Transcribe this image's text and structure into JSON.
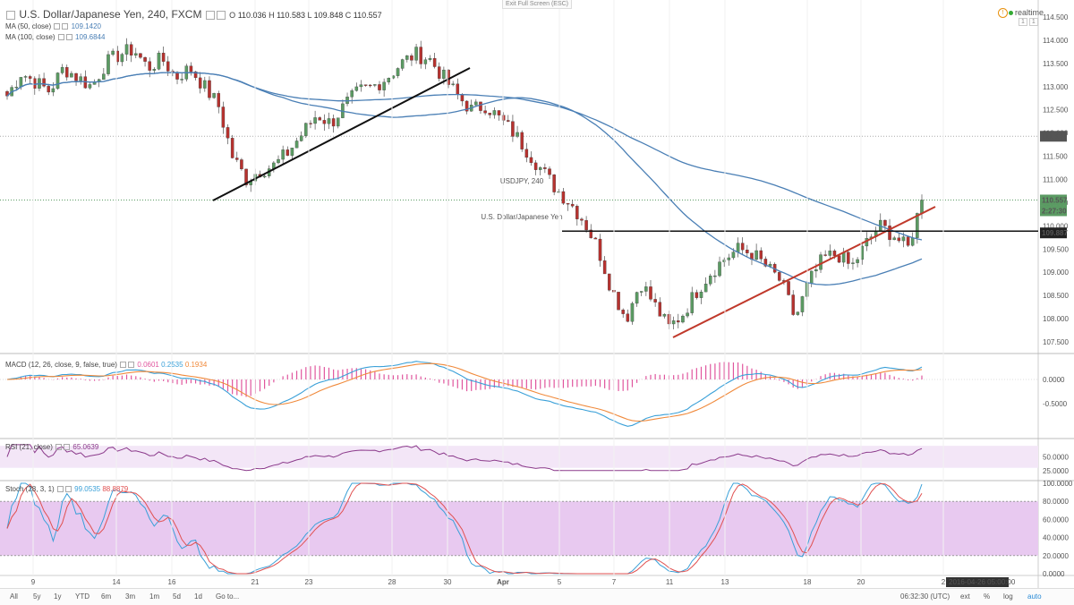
{
  "header": {
    "symbol_title": "U.S. Dollar/Japanese Yen, 240, FXCM",
    "ohlc": {
      "o_label": "O",
      "o": "110.036",
      "h_label": "H",
      "h": "110.583",
      "l_label": "L",
      "l": "109.848",
      "c_label": "C",
      "c": "110.557"
    },
    "ma50_label": "MA (50, close)",
    "ma50_value": "109.1420",
    "ma100_label": "MA (100, close)",
    "ma100_value": "109.6844",
    "exit_fullscreen": "Exit Full Screen (ESC)",
    "realtime": "realtime",
    "realtime_icon": "!",
    "badge1": "1",
    "badge2": "1"
  },
  "watermark": {
    "symbol": "USDJPY, 240",
    "name": "U.S. Dollar/Japanese Yen"
  },
  "price_axis": {
    "ticks": [
      "114.500",
      "114.000",
      "113.500",
      "113.000",
      "112.500",
      "112.000",
      "111.500",
      "111.000",
      "110.500",
      "110.000",
      "109.500",
      "109.000",
      "108.500",
      "108.000",
      "107.500"
    ],
    "tag_111930": "111.930",
    "tag_last": "110.557",
    "tag_countdown": "2:27:30",
    "tag_level": "109.887"
  },
  "macd": {
    "label": "MACD (12, 26, close, 9, false, true)",
    "v1": "0.0601",
    "v2": "0.2535",
    "v3": "0.1934",
    "ticks": [
      "0.0000",
      "-0.5000"
    ]
  },
  "rsi": {
    "label": "RSI (21, close)",
    "value": "65.0639",
    "ticks": [
      "50.0000",
      "25.0000"
    ]
  },
  "stoch": {
    "label": "Stoch (28, 3, 1)",
    "v1": "99.0535",
    "v2": "88.8879",
    "ticks": [
      "100.0000",
      "80.0000",
      "60.0000",
      "40.0000",
      "20.0000",
      "0.0000"
    ]
  },
  "time_axis": {
    "ticks": [
      "9",
      "14",
      "16",
      "21",
      "23",
      "28",
      "30",
      "Apr",
      "5",
      "7",
      "11",
      "13",
      "18",
      "20",
      "2"
    ],
    "cursor_label": "2016-04-26 05:00:00"
  },
  "bottom_bar": {
    "ranges": [
      "All",
      "5y",
      "1y",
      "YTD",
      "6m",
      "3m",
      "1m",
      "5d",
      "1d",
      "Go to..."
    ],
    "clock": "06:32:30 (UTC)",
    "right": [
      "ext",
      "%",
      "log",
      "auto"
    ]
  },
  "colors": {
    "up": "#5b9b63",
    "down": "#b7322f",
    "ma": "#4a7fb5",
    "trend_red": "#c0392b",
    "macd_hist": "#e0569e",
    "macd_line": "#3aa0d8",
    "signal_line": "#f08a3c",
    "rsi_line": "#8b3a8b",
    "rsi_band": "#f3e6f7",
    "stoch_band": "#e8c9f0",
    "stoch_k": "#3aa0d8",
    "stoch_d": "#e05050"
  },
  "chart_data": {
    "type": "candlestick",
    "title": "U.S. Dollar/Japanese Yen, 240, FXCM",
    "ylim": [
      107.25,
      114.75
    ],
    "x_ticks": [
      "9",
      "14",
      "16",
      "21",
      "23",
      "28",
      "30",
      "Apr",
      "5",
      "7",
      "11",
      "13",
      "18",
      "20",
      "2"
    ],
    "close_path": [
      112.8,
      113.3,
      113.1,
      112.9,
      113.4,
      113.2,
      113.0,
      113.5,
      113.7,
      113.8,
      113.4,
      113.6,
      113.2,
      113.4,
      113.0,
      112.6,
      111.5,
      111.0,
      111.2,
      111.3,
      111.6,
      112.0,
      112.4,
      112.2,
      112.6,
      112.9,
      113.0,
      113.2,
      113.5,
      113.7,
      113.6,
      113.2,
      112.8,
      112.5,
      112.6,
      112.3,
      112.0,
      111.6,
      111.2,
      110.8,
      110.5,
      110.1,
      109.5,
      108.6,
      108.0,
      108.8,
      108.3,
      107.8,
      108.1,
      108.6,
      109.0,
      109.3,
      109.5,
      109.4,
      109.1,
      108.8,
      108.0,
      108.8,
      109.3,
      109.4,
      109.1,
      109.6,
      110.0,
      109.8,
      109.5,
      110.55
    ],
    "ma50_value": 109.142,
    "ma100_value": 109.6844,
    "horizontal_levels": [
      111.93,
      109.887
    ],
    "last": 110.557,
    "macd": {
      "macd": 0.2535,
      "signal": 0.0601,
      "hist": 0.1934
    },
    "rsi": 65.0639,
    "stoch": {
      "k": 99.0535,
      "d": 88.8879
    }
  }
}
